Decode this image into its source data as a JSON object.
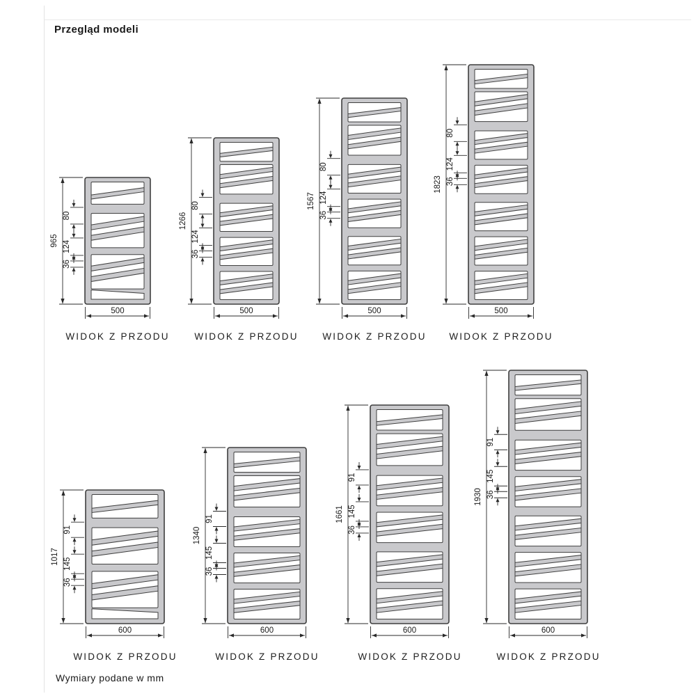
{
  "page": {
    "title": "Przegląd modeli",
    "footnote": "Wymiary podane w mm",
    "view_label": "WIDOK Z PRZODU"
  },
  "colors": {
    "radiator_fill": "#c9c9cc",
    "outline": "#3f3f3f",
    "dim_line": "#2a2a2a",
    "text": "#1a1a1a",
    "page_rule": "#e3e3e3"
  },
  "rows": [
    {
      "width_label": "500",
      "inner_dims": [
        "80",
        "124",
        "36"
      ],
      "models": [
        {
          "height_label": "965"
        },
        {
          "height_label": "1266"
        },
        {
          "height_label": "1567"
        },
        {
          "height_label": "1823"
        }
      ]
    },
    {
      "width_label": "600",
      "inner_dims": [
        "91",
        "145",
        "36"
      ],
      "models": [
        {
          "height_label": "1017"
        },
        {
          "height_label": "1340"
        },
        {
          "height_label": "1661"
        },
        {
          "height_label": "1930"
        }
      ]
    }
  ]
}
